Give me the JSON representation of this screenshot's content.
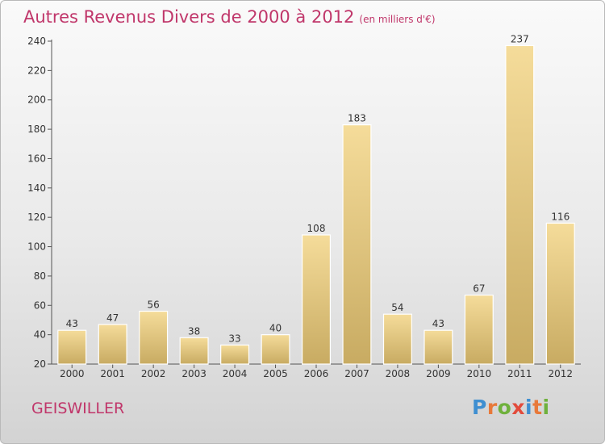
{
  "header": {
    "title": "Autres Revenus Divers de 2000 à 2012",
    "subtitle": "(en milliers d'€)"
  },
  "footer": {
    "town": "GEISWILLER",
    "brand_letters": [
      "P",
      "r",
      "o",
      "x",
      "i",
      "t",
      "i"
    ],
    "brand_colors": [
      "#3f8fd1",
      "#e8793a",
      "#6fb13c",
      "#e24b3b",
      "#3f8fd1",
      "#e8793a",
      "#6fb13c"
    ]
  },
  "chart_data": {
    "type": "bar",
    "categories": [
      "2000",
      "2001",
      "2002",
      "2003",
      "2004",
      "2005",
      "2006",
      "2007",
      "2008",
      "2009",
      "2010",
      "2011",
      "2012"
    ],
    "values": [
      43,
      47,
      56,
      38,
      33,
      40,
      108,
      183,
      54,
      43,
      67,
      237,
      116
    ],
    "data_labels": [
      "43",
      "47",
      "56",
      "38",
      "33",
      "40",
      "108",
      "183",
      "54",
      "43",
      "67",
      "237",
      "116"
    ],
    "ylim": [
      20,
      240
    ],
    "yticks": [
      20,
      40,
      60,
      80,
      100,
      120,
      140,
      160,
      180,
      200,
      220,
      240
    ],
    "ytick_labels": [
      "20",
      "40",
      "60",
      "80",
      "100",
      "120",
      "140",
      "160",
      "180",
      "200",
      "220",
      "240"
    ],
    "grid": false,
    "bar_color_light": "#f5dc9a",
    "bar_color_dark": "#c8ab62"
  }
}
